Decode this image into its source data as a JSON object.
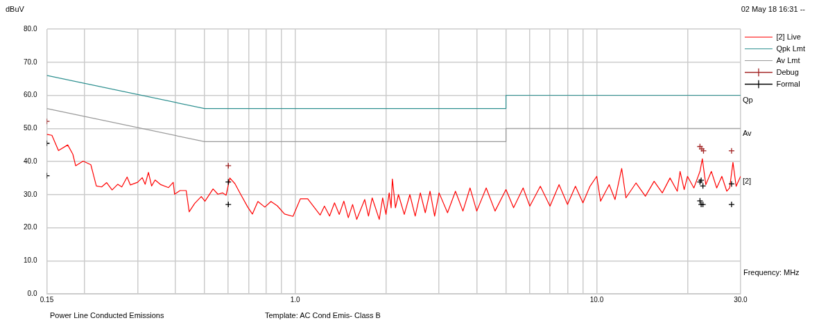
{
  "chart_data": {
    "type": "line",
    "ylabel": "dBuV",
    "xlabel": "Frequency: MHz",
    "log": "x",
    "grid": true,
    "legend": "top right",
    "xlim": [
      0.15,
      30
    ],
    "ylim": [
      0,
      80
    ],
    "xticks": [
      {
        "value": 0.15,
        "label": "0.15"
      },
      {
        "value": 0.2,
        "label": null
      },
      {
        "value": 0.3,
        "label": null
      },
      {
        "value": 0.4,
        "label": null
      },
      {
        "value": 0.5,
        "label": null
      },
      {
        "value": 0.6,
        "label": null
      },
      {
        "value": 0.7,
        "label": null
      },
      {
        "value": 0.8,
        "label": null
      },
      {
        "value": 0.9,
        "label": null
      },
      {
        "value": 1,
        "label": "1.0"
      },
      {
        "value": 2,
        "label": null
      },
      {
        "value": 3,
        "label": null
      },
      {
        "value": 4,
        "label": null
      },
      {
        "value": 5,
        "label": null
      },
      {
        "value": 6,
        "label": null
      },
      {
        "value": 7,
        "label": null
      },
      {
        "value": 8,
        "label": null
      },
      {
        "value": 9,
        "label": null
      },
      {
        "value": 10,
        "label": "10.0"
      },
      {
        "value": 20,
        "label": null
      },
      {
        "value": 30,
        "label": "30.0"
      }
    ],
    "yticks": [
      {
        "value": 0,
        "label": "0.0"
      },
      {
        "value": 10,
        "label": "10.0"
      },
      {
        "value": 20,
        "label": "20.0"
      },
      {
        "value": 30,
        "label": "30.0"
      },
      {
        "value": 40,
        "label": "40.0"
      },
      {
        "value": 50,
        "label": "50.0"
      },
      {
        "value": 60,
        "label": "60.0"
      },
      {
        "value": 70,
        "label": "70.0"
      },
      {
        "value": 80,
        "label": "80.0"
      }
    ],
    "series": [
      {
        "name": "[2] Live",
        "type": "line",
        "color": "#ff0000",
        "x": [
          0.15,
          0.156,
          0.164,
          0.176,
          0.183,
          0.187,
          0.198,
          0.21,
          0.219,
          0.228,
          0.237,
          0.247,
          0.258,
          0.266,
          0.277,
          0.284,
          0.3,
          0.311,
          0.318,
          0.326,
          0.334,
          0.343,
          0.358,
          0.38,
          0.394,
          0.398,
          0.415,
          0.435,
          0.445,
          0.464,
          0.488,
          0.502,
          0.534,
          0.554,
          0.574,
          0.59,
          0.607,
          0.631,
          0.659,
          0.696,
          0.721,
          0.752,
          0.793,
          0.831,
          0.872,
          0.922,
          0.983,
          1.04,
          1.1,
          1.21,
          1.25,
          1.3,
          1.35,
          1.4,
          1.45,
          1.5,
          1.55,
          1.6,
          1.7,
          1.75,
          1.8,
          1.9,
          1.95,
          2.0,
          2.05,
          2.08,
          2.1,
          2.15,
          2.2,
          2.3,
          2.4,
          2.5,
          2.6,
          2.7,
          2.8,
          2.9,
          3.0,
          3.2,
          3.4,
          3.6,
          3.8,
          4.0,
          4.3,
          4.6,
          5.0,
          5.3,
          5.7,
          6.0,
          6.5,
          7.0,
          7.5,
          8.0,
          8.5,
          9.0,
          9.5,
          10.0,
          10.3,
          11,
          11.5,
          12.1,
          12.5,
          13.5,
          14.5,
          15.5,
          16.5,
          17.5,
          18.5,
          18.9,
          19.5,
          20,
          21,
          22,
          22.4,
          23,
          24,
          25,
          26,
          27,
          27.6,
          28.3,
          29,
          30
        ],
        "values": [
          48.2,
          47.9,
          43.3,
          45.0,
          42.2,
          38.7,
          40.1,
          39.0,
          32.6,
          32.3,
          33.6,
          31.4,
          33.1,
          32.3,
          35.3,
          32.9,
          33.7,
          35.1,
          33.1,
          36.7,
          32.6,
          34.4,
          33.0,
          32.1,
          33.7,
          30.1,
          31.2,
          31.2,
          24.8,
          27.3,
          29.4,
          28.0,
          31.7,
          30.1,
          30.5,
          29.8,
          35.0,
          33.3,
          30.1,
          26.2,
          24.1,
          27.9,
          26.2,
          27.9,
          26.6,
          24.1,
          23.4,
          28.7,
          28.7,
          23.8,
          26.5,
          23.5,
          27.5,
          24,
          28,
          23,
          27,
          22.5,
          28.5,
          23.5,
          29,
          22.5,
          29,
          24,
          30.5,
          26,
          34.7,
          26,
          30,
          24,
          30,
          23.5,
          30.5,
          24.5,
          31,
          23.5,
          30.5,
          24.5,
          31,
          25,
          32,
          25,
          32,
          25,
          31.5,
          26,
          32,
          26.5,
          32.5,
          26.5,
          33,
          27,
          32.5,
          27.5,
          32.5,
          35.5,
          28,
          33,
          28.5,
          37.9,
          29,
          33.5,
          29.5,
          34,
          30.5,
          35,
          31,
          37,
          31.5,
          35.5,
          32,
          37,
          40.8,
          33,
          37,
          32,
          35.5,
          31,
          32,
          39.7,
          32.5,
          35.5
        ]
      },
      {
        "name": "Qpk Lmt",
        "type": "line",
        "color": "#2e9090",
        "x": [
          0.15,
          0.5,
          5,
          5,
          30
        ],
        "values": [
          66,
          56,
          56,
          60,
          60
        ]
      },
      {
        "name": "Av Lmt",
        "type": "line",
        "color": "#999999",
        "x": [
          0.15,
          0.5,
          5,
          5,
          30
        ],
        "values": [
          56,
          46,
          46,
          50,
          50
        ]
      },
      {
        "name": "Debug",
        "type": "scatter",
        "marker": "cross",
        "color": "#a02020",
        "x": [
          0.15,
          0.6,
          22.0,
          22.3,
          22.6,
          28.0
        ],
        "values": [
          52.1,
          38.7,
          44.5,
          43.8,
          43.2,
          43.2
        ]
      },
      {
        "name": "Formal",
        "type": "scatter",
        "marker": "cross",
        "color": "#000000",
        "x": [
          0.15,
          0.15,
          0.6,
          0.6,
          22.0,
          22.2,
          22.5,
          28.0,
          22.0,
          22.2,
          22.5,
          28.0
        ],
        "values": [
          45.5,
          35.7,
          33.8,
          27.0,
          33.8,
          34.3,
          32.6,
          33.2,
          28.1,
          27.0,
          27.0,
          27.0
        ]
      }
    ],
    "annotations": [
      "02 May 18 16:31 --",
      "Power Line Conducted Emissions",
      "Template: AC Cond Emis- Class B",
      "Qp",
      "Av",
      "[2]"
    ]
  }
}
